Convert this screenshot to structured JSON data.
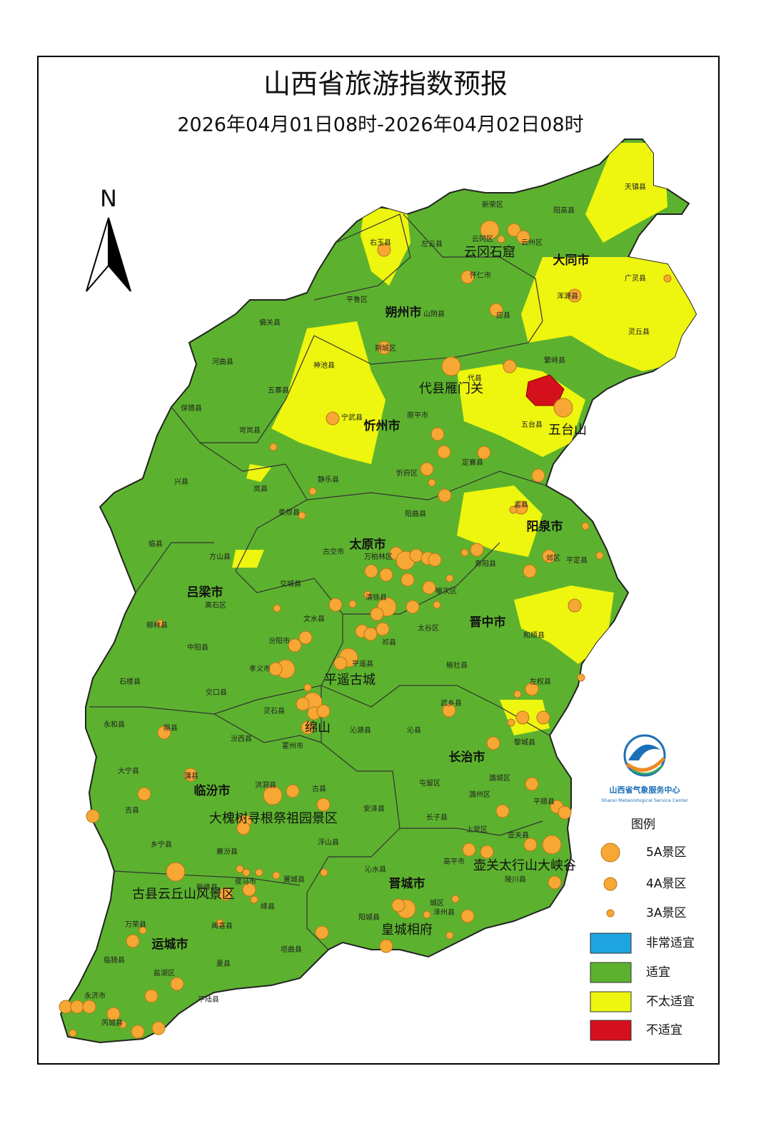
{
  "header": {
    "title": "山西省旅游指数预报",
    "subtitle": "2026年04月01日08时-2026年04月02日08时"
  },
  "north": "N",
  "cities": [
    "大同市",
    "朔州市",
    "忻州市",
    "太原市",
    "吕梁市",
    "阳泉市",
    "晋中市",
    "临汾市",
    "长治市",
    "晋城市",
    "运城市"
  ],
  "scenic_spots": [
    "云冈石窟",
    "代县雁门关",
    "五台山",
    "平遥古城",
    "绵山",
    "大槐树寻根祭祖园景区",
    "壶关太行山大峡谷",
    "古县云丘山风景区",
    "皇城相府"
  ],
  "counties": [
    "天镇县",
    "阳高县",
    "新荣区",
    "右玉县",
    "左云县",
    "云冈区",
    "云州区",
    "怀仁市",
    "广灵县",
    "浑源县",
    "平鲁区",
    "山阴县",
    "应县",
    "灵丘县",
    "偏关县",
    "朔城区",
    "繁峙县",
    "河曲县",
    "神池县",
    "代县",
    "五寨县",
    "保德县",
    "宁武县",
    "原平市",
    "五台县",
    "岢岚县",
    "定襄县",
    "忻府区",
    "静乐县",
    "岚县",
    "兴县",
    "阳曲县",
    "娄烦县",
    "盂县",
    "临县",
    "方山县",
    "古交市",
    "万柏林区",
    "平定县",
    "寿阳县",
    "郊区",
    "离石区",
    "交城县",
    "清徐县",
    "榆次区",
    "柳林县",
    "文水县",
    "太谷区",
    "中阳县",
    "汾阳市",
    "祁县",
    "和顺县",
    "孝义市",
    "平遥县",
    "榆社县",
    "石楼县",
    "交口县",
    "左权县",
    "灵石县",
    "武乡县",
    "永和县",
    "隰县",
    "汾西县",
    "沁源县",
    "沁县",
    "黎城县",
    "霍州市",
    "大宁县",
    "蒲县",
    "屯留区",
    "潞城区",
    "洪洞县",
    "古县",
    "吉县",
    "安泽县",
    "潞州区",
    "平顺县",
    "长子县",
    "乡宁县",
    "浮山县",
    "上党区",
    "壶关县",
    "襄汾县",
    "高平市",
    "沁水县",
    "陵川县",
    "新绛县",
    "侯马市",
    "翼城县",
    "绛县",
    "泽州县",
    "城区",
    "阳城县",
    "万荣县",
    "闻喜县",
    "垣曲县",
    "临猗县",
    "夏县",
    "盐湖区",
    "永济市",
    "平陆县",
    "芮城县"
  ],
  "logo": {
    "name": "山西省气象服务中心",
    "name_en": "Shanxi Meteorological Service Center"
  },
  "legend": {
    "title": "图例",
    "items": [
      {
        "label": "5A景区",
        "color": "#f7a733"
      },
      {
        "label": "4A景区",
        "color": "#f7a733"
      },
      {
        "label": "3A景区",
        "color": "#f7a733"
      },
      {
        "label": "非常适宜",
        "color": "#1ea4e0"
      },
      {
        "label": "适宜",
        "color": "#5cb22e"
      },
      {
        "label": "不太适宜",
        "color": "#eef50f"
      },
      {
        "label": "不适宜",
        "color": "#d4101c"
      }
    ]
  }
}
